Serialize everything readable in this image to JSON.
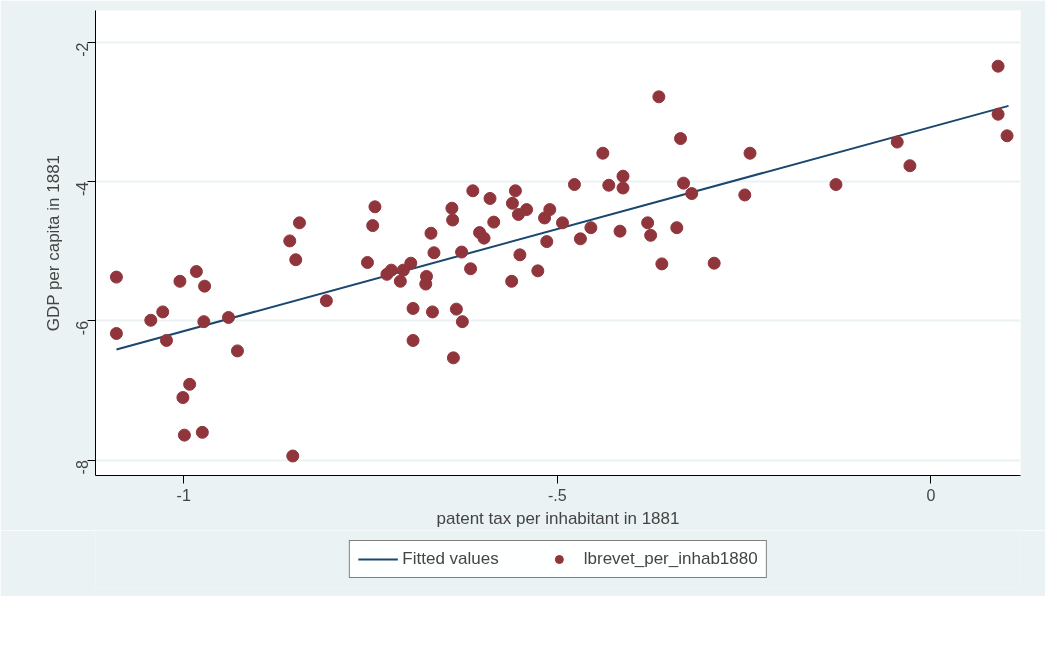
{
  "chart_data": {
    "type": "scatter",
    "xlabel": "patent tax per inhabitant in 1881",
    "ylabel": "GDP per capita in 1881",
    "xlim": [
      -1.118,
      0.12
    ],
    "ylim": [
      -8.22,
      -1.54
    ],
    "xticks": [
      {
        "value": -1,
        "label": "-1"
      },
      {
        "value": -0.5,
        "label": "-.5"
      },
      0
    ],
    "yticks": [
      -8,
      -6,
      -4,
      -2
    ],
    "grid": "y",
    "legend": "bottom",
    "marker": "circle",
    "series": [
      {
        "name": "Fitted values",
        "type": "line",
        "marker": "none",
        "color": "#1a476f",
        "x": [
          -1.09,
          0.104
        ],
        "values": [
          -6.41,
          -2.91
        ]
      },
      {
        "name": "lbrevet_per_inhab1880",
        "color": "#90353b",
        "x": [
          -1.09,
          -1.09,
          -1.044,
          -1.028,
          -1.023,
          -1.005,
          -1.001,
          -0.999,
          -0.992,
          -0.983,
          -0.975,
          -0.973,
          -0.972,
          -0.94,
          -0.928,
          -0.858,
          -0.854,
          -0.85,
          -0.845,
          -0.809,
          -0.754,
          -0.747,
          -0.744,
          -0.728,
          -0.722,
          -0.71,
          -0.706,
          -0.696,
          -0.693,
          -0.693,
          -0.676,
          -0.675,
          -0.669,
          -0.667,
          -0.665,
          -0.641,
          -0.64,
          -0.639,
          -0.635,
          -0.628,
          -0.627,
          -0.616,
          -0.613,
          -0.604,
          -0.598,
          -0.59,
          -0.585,
          -0.561,
          -0.56,
          -0.556,
          -0.552,
          -0.55,
          -0.541,
          -0.526,
          -0.517,
          -0.514,
          -0.51,
          -0.493,
          -0.477,
          -0.469,
          -0.455,
          -0.439,
          -0.431,
          -0.416,
          -0.412,
          -0.412,
          -0.379,
          -0.375,
          -0.364,
          -0.36,
          -0.34,
          -0.335,
          -0.331,
          -0.32,
          -0.29,
          -0.249,
          -0.242,
          -0.127,
          -0.045,
          -0.028,
          0.09,
          0.09,
          0.102
        ],
        "values": [
          -5.37,
          -6.18,
          -5.99,
          -5.87,
          -6.28,
          -5.43,
          -7.1,
          -7.64,
          -6.91,
          -5.29,
          -7.6,
          -6.01,
          -5.5,
          -5.95,
          -6.43,
          -4.85,
          -7.94,
          -5.12,
          -4.59,
          -5.71,
          -5.16,
          -4.63,
          -4.36,
          -5.33,
          -5.27,
          -5.43,
          -5.27,
          -5.17,
          -5.82,
          -6.28,
          -5.47,
          -5.36,
          -4.74,
          -5.87,
          -5.02,
          -4.38,
          -4.55,
          -6.53,
          -5.83,
          -5.01,
          -6.01,
          -5.25,
          -4.13,
          -4.73,
          -4.81,
          -4.24,
          -4.58,
          -5.43,
          -4.31,
          -4.13,
          -4.47,
          -5.05,
          -4.4,
          -5.28,
          -4.52,
          -4.86,
          -4.4,
          -4.59,
          -4.04,
          -4.82,
          -4.66,
          -3.59,
          -4.05,
          -4.71,
          -3.92,
          -4.09,
          -4.59,
          -4.77,
          -2.78,
          -5.18,
          -4.66,
          -3.38,
          -4.02,
          -4.17,
          -5.17,
          -4.19,
          -3.59,
          -4.04,
          -3.43,
          -3.77,
          -2.34,
          -3.03,
          -3.34
        ]
      }
    ]
  }
}
